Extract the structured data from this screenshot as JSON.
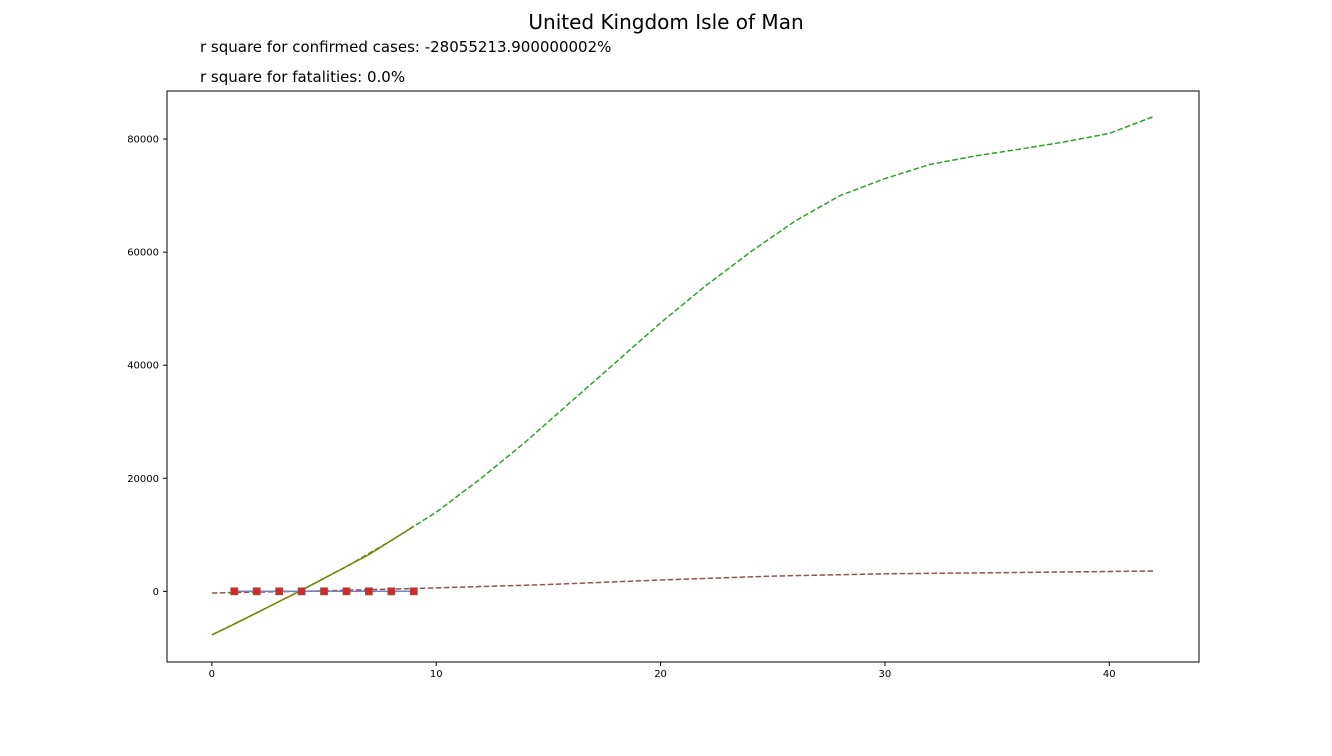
{
  "chart_data": {
    "type": "line",
    "title": "United Kingdom Isle of Man",
    "subtitles": [
      "r square for confirmed cases: -28055213.900000002%",
      "r square for fatalities: 0.0%"
    ],
    "xlabel": "",
    "ylabel": "",
    "xlim": [
      -2,
      44
    ],
    "ylim": [
      -12500,
      88500
    ],
    "x_ticks": [
      0,
      10,
      20,
      30,
      40
    ],
    "y_ticks": [
      0,
      20000,
      40000,
      60000,
      80000
    ],
    "grid": false,
    "series": [
      {
        "color": "#2ca02c",
        "style": "dashed",
        "x": [
          0,
          2,
          4,
          6,
          8,
          10,
          12,
          14,
          16,
          18,
          20,
          22,
          24,
          26,
          28,
          30,
          32,
          34,
          36,
          38,
          40,
          42
        ],
        "y": [
          -7700,
          -3800,
          200,
          4400,
          9000,
          14000,
          20000,
          26500,
          33500,
          40500,
          47500,
          54000,
          60000,
          65500,
          70000,
          73000,
          75500,
          77000,
          78200,
          79500,
          81000,
          84000
        ]
      },
      {
        "color": "#808000",
        "style": "solid",
        "x": [
          0,
          1,
          2,
          3,
          4,
          5,
          6,
          7,
          8,
          9
        ],
        "y": [
          -7700,
          -5800,
          -3800,
          -1800,
          200,
          2300,
          4400,
          6500,
          9000,
          11500
        ]
      },
      {
        "color": "#8c564b",
        "style": "dashed",
        "x": [
          0,
          5,
          10,
          15,
          20,
          25,
          30,
          35,
          40,
          42
        ],
        "y": [
          -300,
          100,
          600,
          1200,
          2000,
          2700,
          3100,
          3300,
          3500,
          3600
        ]
      },
      {
        "color": "#7f7fbf",
        "style": "solid",
        "x": [
          1,
          2,
          3,
          4,
          5,
          6,
          7,
          8,
          9
        ],
        "y": [
          0,
          0,
          0,
          0,
          0,
          0,
          0,
          0,
          0
        ]
      },
      {
        "color": "#d62728",
        "style": "markers",
        "marker": "square",
        "x": [
          1,
          2,
          3,
          4,
          5,
          6,
          7,
          8,
          9
        ],
        "y": [
          0,
          0,
          0,
          0,
          0,
          0,
          0,
          0,
          0
        ]
      }
    ]
  },
  "colors": {
    "axis": "#000000",
    "background": "#ffffff",
    "marker_fill": "#d62728",
    "marker_edge": "#8c564b"
  }
}
